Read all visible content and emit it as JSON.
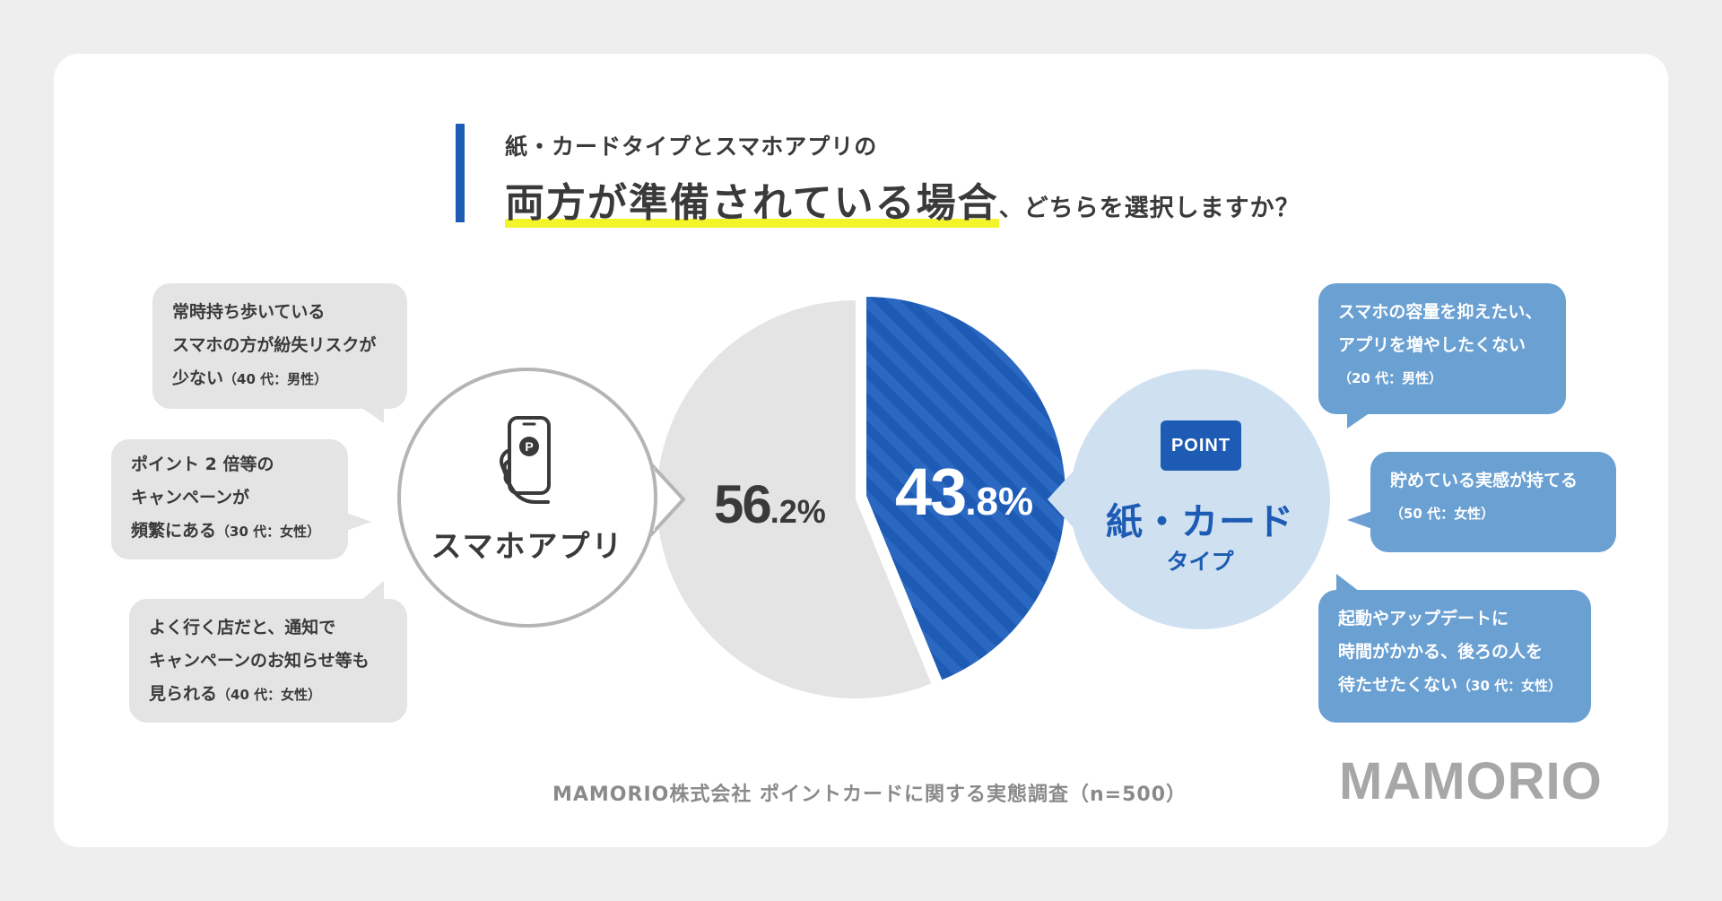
{
  "title": {
    "line1": "紙・カードタイプとスマホアプリの",
    "line2_emphasis": "両方が準備されている場合",
    "line2_rest": "、どちらを選択しますか？"
  },
  "left_comments": [
    {
      "lines": [
        "常時持ち歩いている",
        "スマホの方が紛失リスクが"
      ],
      "last": "少ない",
      "tag": "（40 代：男性）"
    },
    {
      "lines": [
        "ポイント 2 倍等の",
        "キャンペーンが"
      ],
      "last": "頻繁にある",
      "tag": "（30 代：女性）"
    },
    {
      "lines": [
        "よく行く店だと、通知で",
        "キャンペーンのお知らせ等も"
      ],
      "last": "見られる",
      "tag": "（40 代：女性）"
    }
  ],
  "right_comments": [
    {
      "lines": [
        "スマホの容量を抑えたい、",
        "アプリを増やしたくない"
      ],
      "last": "",
      "tag": "（20 代：男性）"
    },
    {
      "lines": [
        "貯めている実感が持てる"
      ],
      "last": "",
      "tag": "（50 代：女性）"
    },
    {
      "lines": [
        "起動やアップデートに",
        "時間がかかる、後ろの人を"
      ],
      "last": "待たせたくない",
      "tag": "（30 代：女性）"
    }
  ],
  "labels": {
    "app": "スマホアプリ",
    "point_badge": "POINT",
    "card": "紙・カード",
    "card_sub": "タイプ",
    "app_pct_int": "56",
    "app_pct_dec": ".2%",
    "card_pct_int": "43",
    "card_pct_dec": ".8%"
  },
  "chart_data": {
    "type": "pie",
    "categories": [
      "スマホアプリ",
      "紙・カードタイプ"
    ],
    "values": [
      56.2,
      43.8
    ],
    "colors": [
      "#e4e4e4",
      "#1e5bb5"
    ],
    "start": "12 o'clock, clockwise starting with 紙・カードタイプ"
  },
  "footer": "MAMORIO株式会社 ポイントカードに関する実態調査（n=500）",
  "logo": "MAMORIO",
  "colors": {
    "accent": "#1e5bb5",
    "light_blue": "#cfe1f1",
    "bubble_blue": "#6aa0d2",
    "bubble_gray": "#e4e4e4",
    "highlight": "#f4f42a"
  }
}
